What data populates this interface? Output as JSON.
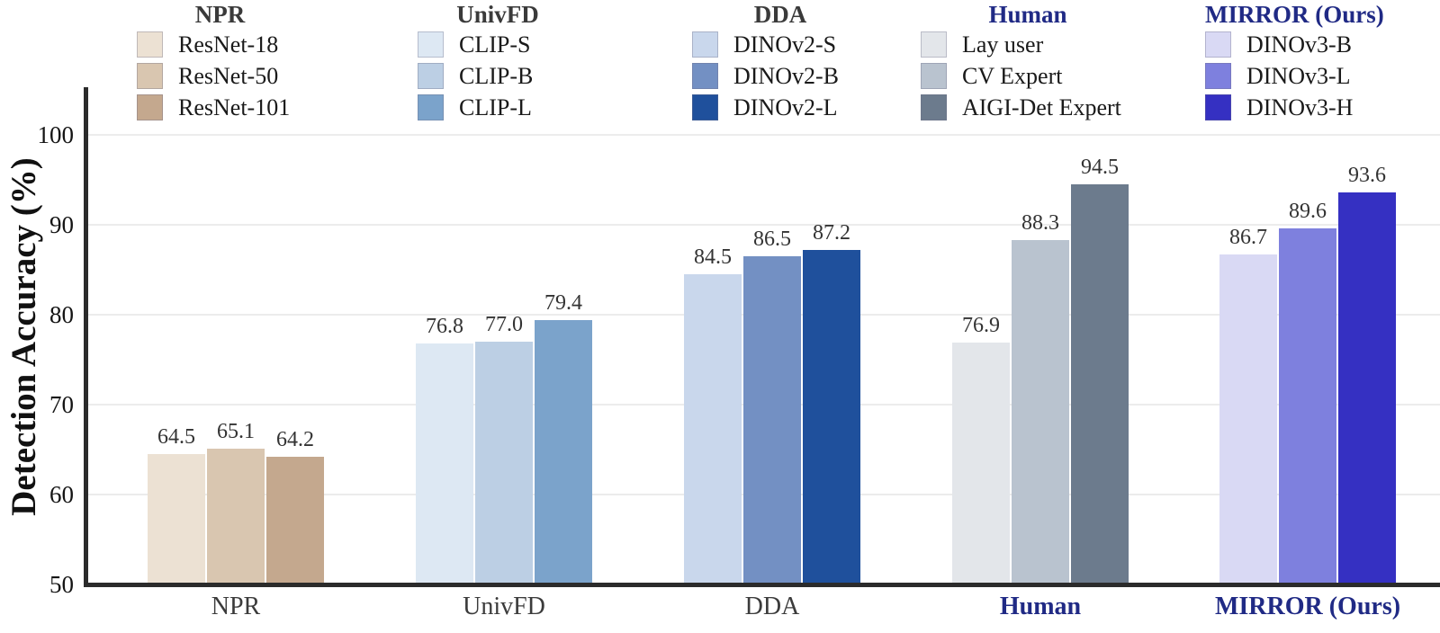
{
  "chart_data": {
    "type": "bar",
    "title": "",
    "ylabel": "Detection Accuracy (%)",
    "xlabel": "",
    "ylim": [
      50,
      105
    ],
    "yticks": [
      50,
      60,
      70,
      80,
      90,
      100
    ],
    "gridlines_at": [
      60,
      70,
      80,
      90,
      100
    ],
    "grid": "horizontal",
    "legend_position": "top",
    "categories": [
      "NPR",
      "UnivFD",
      "DDA",
      "Human",
      "MIRROR (Ours)"
    ],
    "groups": [
      {
        "name": "NPR",
        "emphasis": false,
        "items": [
          {
            "label": "ResNet-18",
            "value": 64.5,
            "color": "#ece1d3"
          },
          {
            "label": "ResNet-50",
            "value": 65.1,
            "color": "#d9c6b0"
          },
          {
            "label": "ResNet-101",
            "value": 64.2,
            "color": "#c4a88e"
          }
        ]
      },
      {
        "name": "UnivFD",
        "emphasis": false,
        "items": [
          {
            "label": "CLIP-S",
            "value": 76.8,
            "color": "#dde8f3"
          },
          {
            "label": "CLIP-B",
            "value": 77.0,
            "color": "#bccfe4"
          },
          {
            "label": "CLIP-L",
            "value": 79.4,
            "color": "#7ba3cb"
          }
        ]
      },
      {
        "name": "DDA",
        "emphasis": false,
        "items": [
          {
            "label": "DINOv2-S",
            "value": 84.5,
            "color": "#c9d7ec"
          },
          {
            "label": "DINOv2-B",
            "value": 86.5,
            "color": "#7390c3"
          },
          {
            "label": "DINOv2-L",
            "value": 87.2,
            "color": "#1f509c"
          }
        ]
      },
      {
        "name": "Human",
        "emphasis": true,
        "items": [
          {
            "label": "Lay user",
            "value": 76.9,
            "color": "#e3e6ea"
          },
          {
            "label": "CV Expert",
            "value": 88.3,
            "color": "#b9c3cf"
          },
          {
            "label": "AIGI-Det Expert",
            "value": 94.5,
            "color": "#6c7b8d"
          }
        ]
      },
      {
        "name": "MIRROR (Ours)",
        "emphasis": true,
        "items": [
          {
            "label": "DINOv3-B",
            "value": 86.7,
            "color": "#d9d9f4"
          },
          {
            "label": "DINOv3-L",
            "value": 89.6,
            "color": "#7e80de"
          },
          {
            "label": "DINOv3-H",
            "value": 93.6,
            "color": "#3530c2"
          }
        ]
      }
    ]
  },
  "colors": {
    "emphasis_navy": "#202a85",
    "group_title": "#3a3a3a",
    "axis_text": "#141414",
    "value_label": "#333333",
    "spine": "#2b2b2b",
    "gridline": "#ececec",
    "background": "#ffffff"
  }
}
